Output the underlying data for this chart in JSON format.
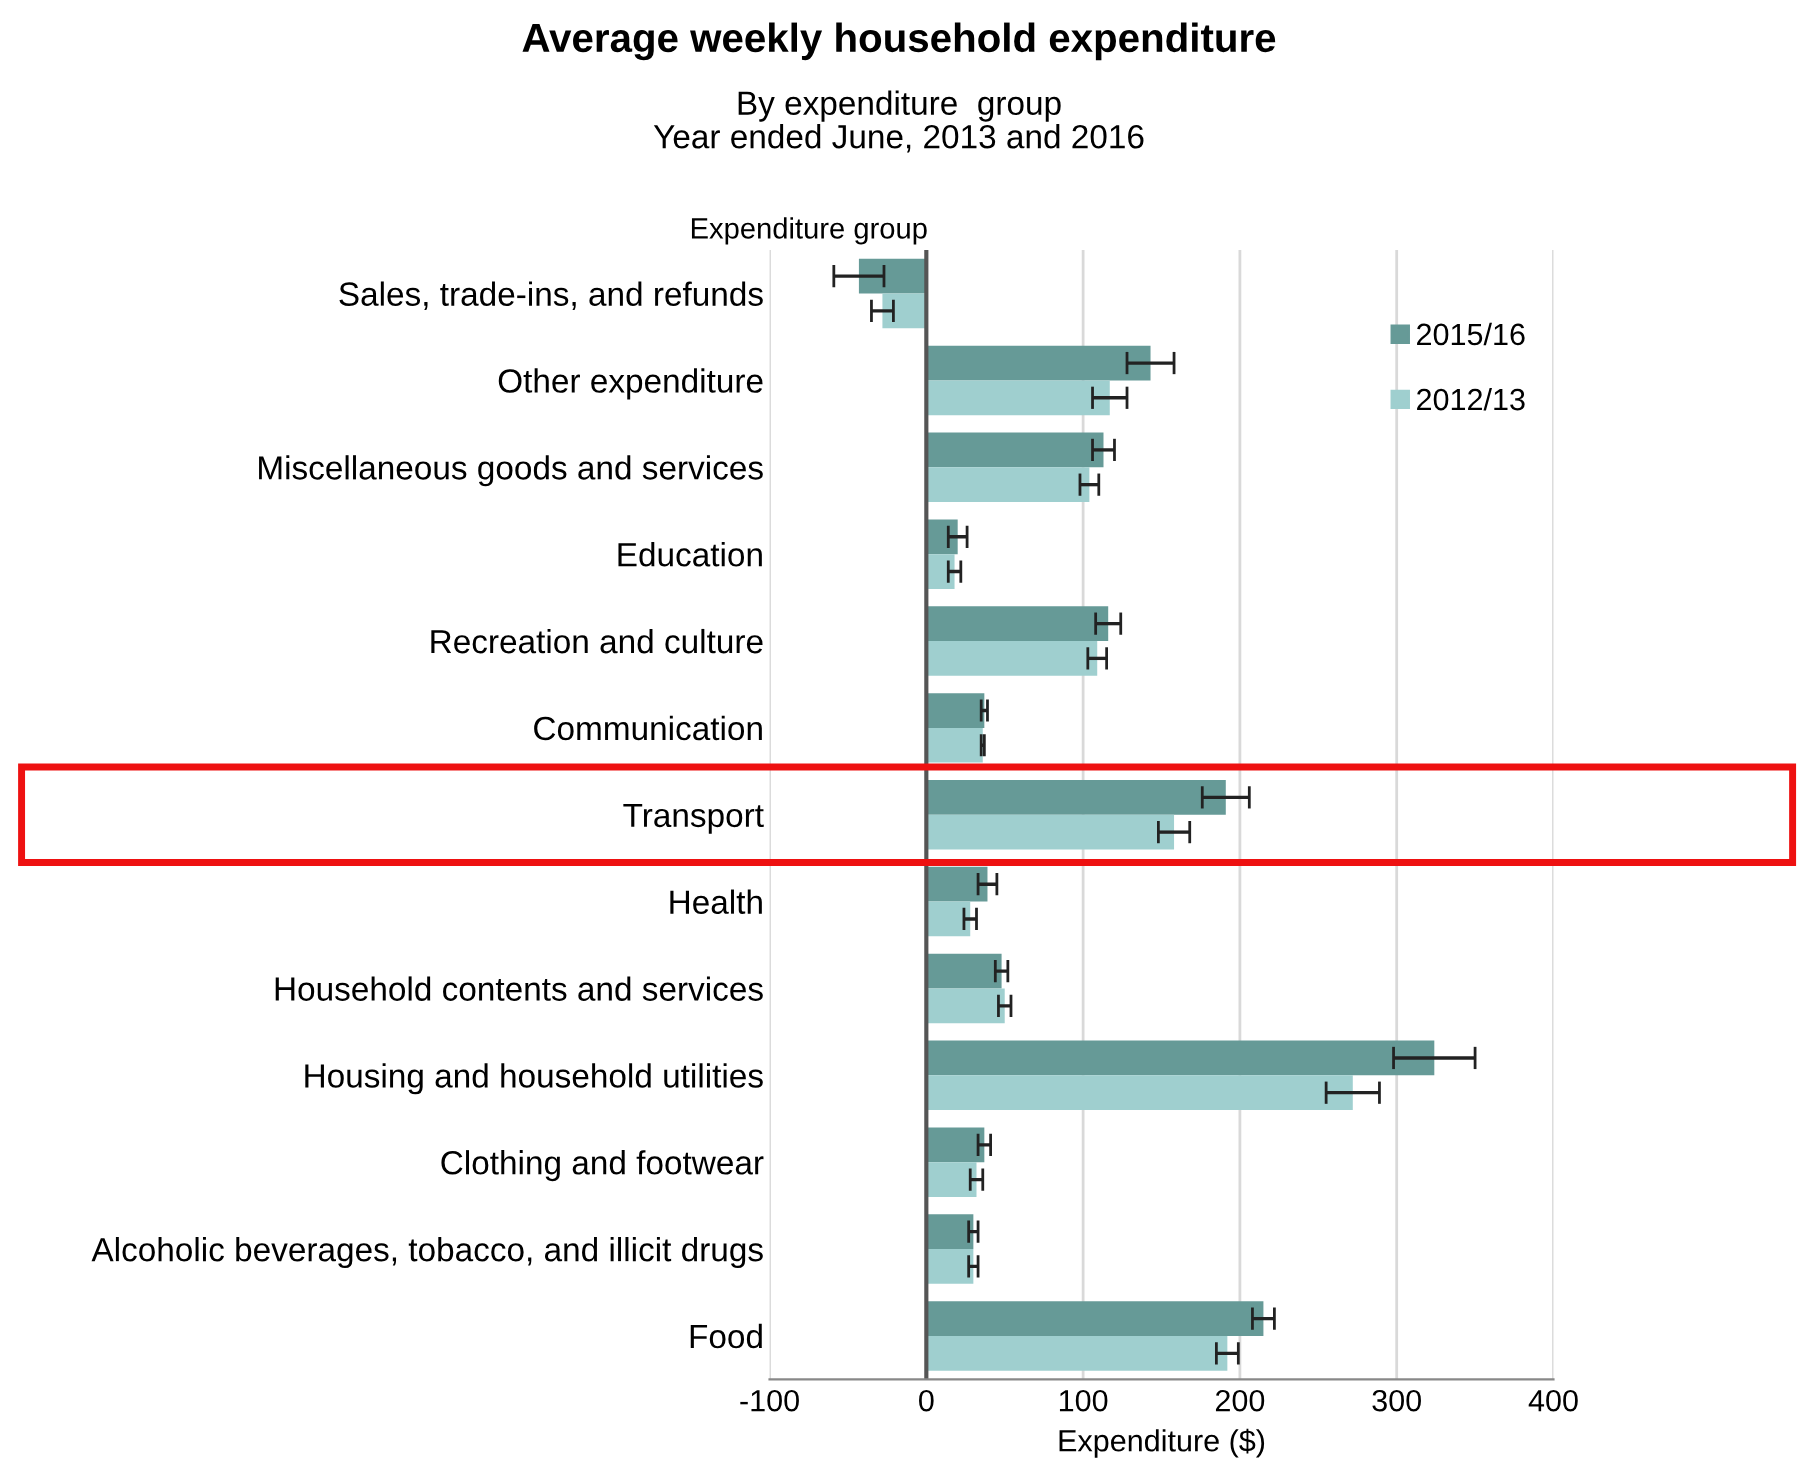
{
  "chart_data": {
    "type": "bar",
    "orientation": "horizontal",
    "title": "Average weekly household expenditure",
    "subtitle": "By expenditure  group\nYear ended June, 2013 and 2016",
    "xlabel": "Expenditure ($)",
    "ylabel": "Expenditure group",
    "categories": [
      "Sales, trade-ins, and refunds",
      "Other expenditure",
      "Miscellaneous goods and services",
      "Education",
      "Recreation and culture",
      "Communication",
      "Transport",
      "Health",
      "Household contents and services",
      "Housing and household utilities",
      "Clothing and footwear",
      "Alcoholic beverages, tobacco, and illicit drugs",
      "Food"
    ],
    "series": [
      {
        "name": "2015/16",
        "color": "#669a97",
        "values": [
          -43,
          143,
          113,
          20,
          116,
          37,
          191,
          39,
          48,
          324,
          37,
          30,
          215
        ],
        "errors": [
          16,
          15,
          7,
          6,
          8,
          2,
          15,
          6,
          4,
          26,
          4,
          3,
          7
        ]
      },
      {
        "name": "2012/13",
        "color": "#9fcfcf",
        "values": [
          -28,
          117,
          104,
          18,
          109,
          36,
          158,
          28,
          50,
          272,
          32,
          30,
          192
        ],
        "errors": [
          7,
          11,
          6,
          4,
          6,
          1,
          10,
          4,
          4,
          17,
          4,
          3,
          7
        ]
      }
    ],
    "xlim": [
      -100,
      400
    ],
    "xticks": [
      -100,
      0,
      100,
      200,
      300,
      400
    ],
    "grid": "x",
    "legend": "top right"
  }
}
